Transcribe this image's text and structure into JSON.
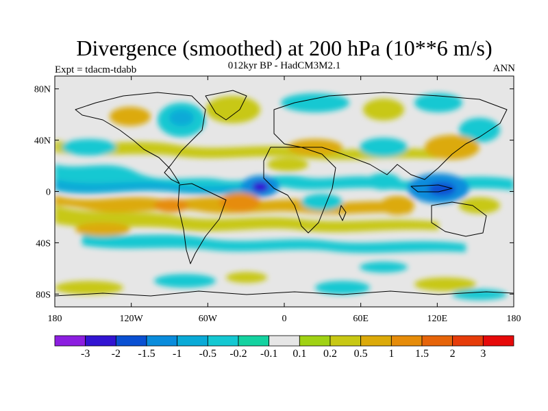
{
  "title": "Divergence (smoothed) at 200 hPa (10**6 m/s)",
  "subtitle": "012kyr BP - HadCM3M2.1",
  "experiment": "Expt = tdacm-tdabb",
  "season": "ANN",
  "map": {
    "projection": "cylindrical equidistant",
    "lon_range": [
      -180,
      180
    ],
    "lat_range": [
      -90,
      90
    ],
    "lat_ticks": [
      "80N",
      "40N",
      "0",
      "40S",
      "80S"
    ],
    "lon_ticks": [
      "180",
      "120W",
      "60W",
      "0",
      "60E",
      "120E",
      "180"
    ],
    "features": [
      {
        "name": "strong convergence west of Africa",
        "lon": -17,
        "lat": 5,
        "value": -3
      },
      {
        "name": "strong convergence Maritime Continent",
        "lon": 130,
        "lat": 2,
        "value": -3
      },
      {
        "name": "divergence band tropical Atlantic",
        "lon": -40,
        "lat": -6,
        "value": 1.5
      },
      {
        "name": "divergence Indian Ocean",
        "lon": 85,
        "lat": -5,
        "value": 1
      },
      {
        "name": "divergence East Pacific",
        "lon": -120,
        "lat": -15,
        "value": 0.5
      }
    ]
  },
  "colorbar": {
    "labels": [
      "-3",
      "-2",
      "-1.5",
      "-1",
      "-0.5",
      "-0.2",
      "-0.1",
      "0.1",
      "0.2",
      "0.5",
      "1",
      "1.5",
      "2",
      "3"
    ],
    "colors": [
      "#8c1ee0",
      "#3214d2",
      "#0a50d2",
      "#0a8cdc",
      "#0aaad7",
      "#14c8d2",
      "#14d2a0",
      "#e6e6e6",
      "#a0d214",
      "#c8c814",
      "#dcaa0a",
      "#e68c0a",
      "#e6640a",
      "#e63c0a",
      "#e60a0a"
    ]
  }
}
